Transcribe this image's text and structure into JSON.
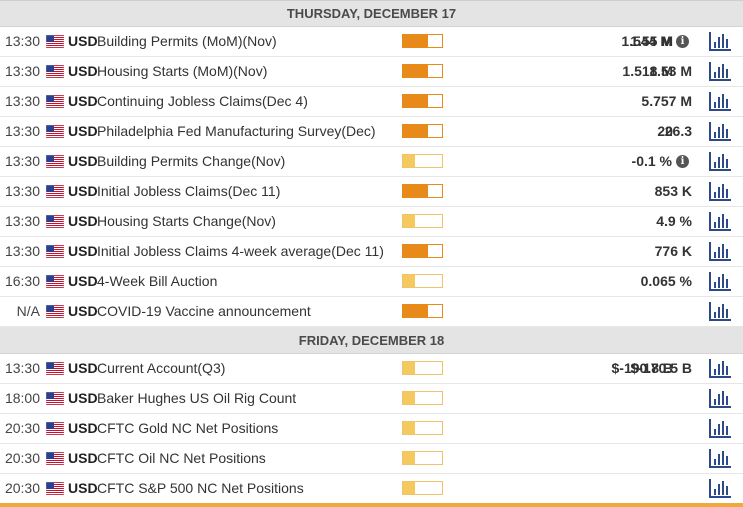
{
  "days": [
    {
      "title": "THURSDAY, DECEMBER 17",
      "events": [
        {
          "time": "13:30",
          "currency": "USD",
          "name": "Building Permits (MoM)(Nov)",
          "importance": "high",
          "actual": "",
          "consensus": "1.55 M",
          "previous": "1.544 M",
          "info": true
        },
        {
          "time": "13:30",
          "currency": "USD",
          "name": "Housing Starts (MoM)(Nov)",
          "importance": "high",
          "actual": "",
          "consensus": "1.518 M",
          "previous": "1.53 M",
          "info": false
        },
        {
          "time": "13:30",
          "currency": "USD",
          "name": "Continuing Jobless Claims(Dec 4)",
          "importance": "high",
          "actual": "",
          "consensus": "",
          "previous": "5.757 M",
          "info": false
        },
        {
          "time": "13:30",
          "currency": "USD",
          "name": "Philadelphia Fed Manufacturing Survey(Dec)",
          "importance": "high",
          "actual": "",
          "consensus": "20",
          "previous": "26.3",
          "info": false
        },
        {
          "time": "13:30",
          "currency": "USD",
          "name": "Building Permits Change(Nov)",
          "importance": "low",
          "actual": "",
          "consensus": "",
          "previous": "-0.1 %",
          "info": true
        },
        {
          "time": "13:30",
          "currency": "USD",
          "name": "Initial Jobless Claims(Dec 11)",
          "importance": "high",
          "actual": "",
          "consensus": "",
          "previous": "853 K",
          "info": false
        },
        {
          "time": "13:30",
          "currency": "USD",
          "name": "Housing Starts Change(Nov)",
          "importance": "low",
          "actual": "",
          "consensus": "",
          "previous": "4.9 %",
          "info": false
        },
        {
          "time": "13:30",
          "currency": "USD",
          "name": "Initial Jobless Claims 4-week average(Dec 11)",
          "importance": "high",
          "actual": "",
          "consensus": "",
          "previous": "776 K",
          "info": false
        },
        {
          "time": "16:30",
          "currency": "USD",
          "name": "4-Week Bill Auction",
          "importance": "low",
          "actual": "",
          "consensus": "",
          "previous": "0.065 %",
          "info": false
        },
        {
          "time": "N/A",
          "currency": "USD",
          "name": "COVID-19 Vaccine announcement",
          "importance": "high",
          "actual": "",
          "consensus": "",
          "previous": "",
          "info": false
        }
      ]
    },
    {
      "title": "FRIDAY, DECEMBER 18",
      "events": [
        {
          "time": "13:30",
          "currency": "USD",
          "name": "Current Account(Q3)",
          "importance": "low",
          "actual": "",
          "consensus": "$-190.8 B",
          "previous": "$-170.5 B",
          "info": false
        },
        {
          "time": "18:00",
          "currency": "USD",
          "name": "Baker Hughes US Oil Rig Count",
          "importance": "low",
          "actual": "",
          "consensus": "",
          "previous": "",
          "info": false
        },
        {
          "time": "20:30",
          "currency": "USD",
          "name": "CFTC Gold NC Net Positions",
          "importance": "low",
          "actual": "",
          "consensus": "",
          "previous": "",
          "info": false
        },
        {
          "time": "20:30",
          "currency": "USD",
          "name": "CFTC Oil NC Net Positions",
          "importance": "low",
          "actual": "",
          "consensus": "",
          "previous": "",
          "info": false
        },
        {
          "time": "20:30",
          "currency": "USD",
          "name": "CFTC S&P 500 NC Net Positions",
          "importance": "low",
          "actual": "",
          "consensus": "",
          "previous": "",
          "info": false
        }
      ]
    }
  ],
  "info_glyph": "i",
  "icons": {
    "flag": "us-flag-icon",
    "chart": "bar-chart-icon",
    "info": "info-icon"
  },
  "colors": {
    "high": "#e88a1a",
    "low": "#f4c95d",
    "header_bg": "#e4e4e4",
    "accent_bar": "#f0a93a"
  }
}
